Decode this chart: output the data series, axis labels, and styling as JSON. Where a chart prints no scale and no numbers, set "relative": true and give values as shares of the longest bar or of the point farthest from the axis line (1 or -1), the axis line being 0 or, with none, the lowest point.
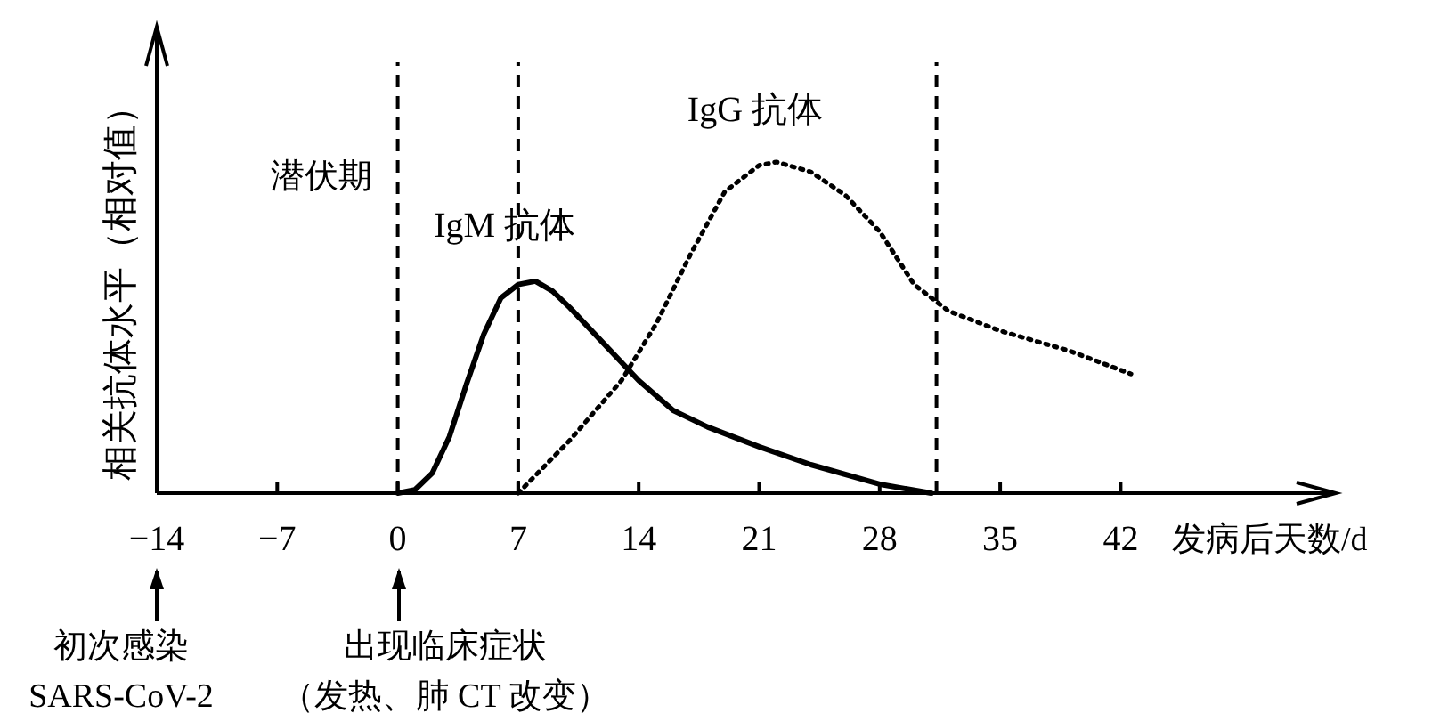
{
  "chart_data": {
    "type": "line",
    "relative": true,
    "xlabel": "发病后天数/d",
    "ylabel": "相关抗体水平（相对值）",
    "xlim": [
      -14,
      54.5
    ],
    "xticks": [
      -14,
      -7,
      0,
      7,
      14,
      21,
      28,
      35,
      42
    ],
    "legend": false,
    "series": [
      {
        "name": "IgM 抗体",
        "color": "#000000",
        "line_style": "solid",
        "x": [
          0,
          1,
          2,
          3,
          4,
          5,
          6,
          7,
          8,
          9,
          10,
          12,
          14,
          16,
          18,
          21,
          24,
          28,
          31
        ],
        "values": [
          0,
          0.01,
          0.06,
          0.17,
          0.33,
          0.48,
          0.59,
          0.63,
          0.64,
          0.61,
          0.56,
          0.45,
          0.34,
          0.25,
          0.2,
          0.14,
          0.086,
          0.027,
          0
        ]
      },
      {
        "name": "IgG 抗体",
        "color": "#000000",
        "line_style": "dotted",
        "x": [
          7,
          10,
          13,
          15,
          17,
          19,
          21,
          22,
          24,
          26,
          28,
          30,
          32,
          35,
          39,
          42.6
        ],
        "values": [
          0,
          0.16,
          0.34,
          0.51,
          0.72,
          0.91,
          0.99,
          1,
          0.97,
          0.9,
          0.79,
          0.63,
          0.55,
          0.49,
          0.43,
          0.36
        ]
      }
    ],
    "ref_lines": [
      {
        "axis": "x",
        "value": 0,
        "line_style": "dashed"
      },
      {
        "axis": "x",
        "value": 7,
        "line_style": "dashed"
      },
      {
        "axis": "x",
        "value": 31.3,
        "line_style": "dashed"
      }
    ],
    "annotations": [
      "潜伏期",
      "初次感染",
      "SARS-CoV-2",
      "出现临床症状",
      "（发热、肺 CT 改变）"
    ]
  }
}
